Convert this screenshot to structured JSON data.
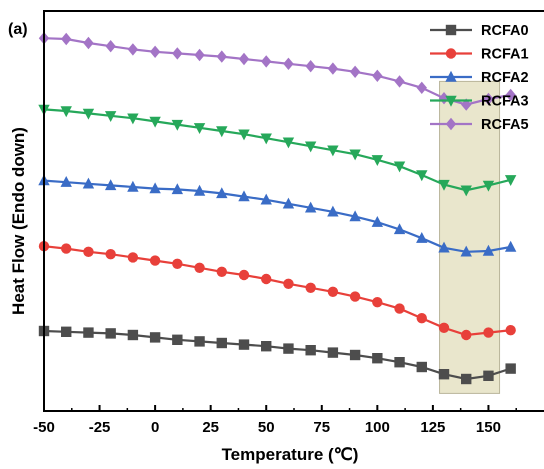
{
  "chart_data": {
    "type": "line",
    "panel_label": "(a)",
    "xlabel": "Temperature (℃)",
    "ylabel": "Heat Flow (Endo down)",
    "xlim": [
      -50,
      175
    ],
    "xticks": [
      -50,
      -25,
      0,
      25,
      50,
      75,
      100,
      125,
      150
    ],
    "y_ticks_shown": false,
    "y_units": "relative (curves vertically offset)",
    "legend_position": "top-right",
    "highlight_region": {
      "x_range": [
        128,
        155
      ],
      "color": "#e9e6cc"
    },
    "x": [
      -50,
      -40,
      -30,
      -20,
      -10,
      0,
      10,
      20,
      30,
      40,
      50,
      60,
      70,
      80,
      90,
      100,
      110,
      120,
      130,
      140,
      150,
      160
    ],
    "series": [
      {
        "name": "RCFA0",
        "color": "#4d4d4d",
        "marker": "square",
        "values": [
          2.0,
          1.95,
          1.9,
          1.85,
          1.75,
          1.6,
          1.45,
          1.35,
          1.25,
          1.15,
          1.05,
          0.9,
          0.8,
          0.65,
          0.5,
          0.3,
          0.05,
          -0.25,
          -0.7,
          -1.0,
          -0.8,
          -0.35
        ]
      },
      {
        "name": "RCFA1",
        "color": "#e8403a",
        "marker": "circle",
        "values": [
          7.3,
          7.15,
          6.95,
          6.8,
          6.6,
          6.4,
          6.2,
          5.95,
          5.7,
          5.5,
          5.25,
          4.95,
          4.7,
          4.45,
          4.15,
          3.8,
          3.4,
          2.8,
          2.2,
          1.75,
          1.9,
          2.05
        ]
      },
      {
        "name": "RCFA2",
        "color": "#3a6cc6",
        "marker": "triangle-up",
        "values": [
          11.4,
          11.3,
          11.2,
          11.1,
          11.0,
          10.9,
          10.85,
          10.75,
          10.6,
          10.4,
          10.2,
          9.95,
          9.7,
          9.45,
          9.15,
          8.8,
          8.35,
          7.8,
          7.2,
          6.95,
          7.0,
          7.25
        ]
      },
      {
        "name": "RCFA3",
        "color": "#26a85a",
        "marker": "triangle-down",
        "values": [
          15.85,
          15.75,
          15.6,
          15.45,
          15.3,
          15.1,
          14.9,
          14.7,
          14.5,
          14.3,
          14.05,
          13.8,
          13.55,
          13.3,
          13.05,
          12.7,
          12.3,
          11.75,
          11.15,
          10.8,
          11.1,
          11.45
        ]
      },
      {
        "name": "RCFA5",
        "color": "#a374c6",
        "marker": "diamond",
        "values": [
          20.3,
          20.25,
          20.0,
          19.8,
          19.6,
          19.45,
          19.35,
          19.25,
          19.15,
          19.0,
          18.85,
          18.7,
          18.55,
          18.4,
          18.2,
          17.95,
          17.6,
          17.2,
          16.55,
          16.15,
          16.5,
          16.75
        ]
      }
    ]
  }
}
